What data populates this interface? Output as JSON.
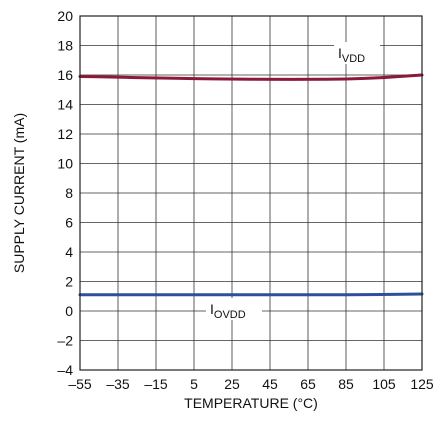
{
  "chart_data": {
    "type": "line",
    "title": "",
    "xlabel": "TEMPERATURE (°C)",
    "ylabel": "SUPPLY CURRENT (mA)",
    "xlim": [
      -55,
      125
    ],
    "ylim": [
      -4,
      20
    ],
    "x_ticks": [
      -55,
      -35,
      -15,
      5,
      25,
      45,
      65,
      85,
      105,
      125
    ],
    "x_tick_labels": [
      "–55",
      "–35",
      "–15",
      "5",
      "25",
      "45",
      "65",
      "85",
      "105",
      "125"
    ],
    "y_ticks": [
      -4,
      -2,
      0,
      2,
      4,
      6,
      8,
      10,
      12,
      14,
      16,
      18,
      20
    ],
    "y_tick_labels": [
      "–4",
      "–2",
      "0",
      "2",
      "4",
      "6",
      "8",
      "10",
      "12",
      "14",
      "16",
      "18",
      "20"
    ],
    "grid": true,
    "series": [
      {
        "name": "VDD",
        "label_main": "I",
        "label_sub": "VDD",
        "color": "#8b1a3a",
        "x": [
          -55,
          -35,
          -15,
          5,
          25,
          45,
          65,
          85,
          105,
          125
        ],
        "values": [
          15.9,
          15.85,
          15.8,
          15.75,
          15.72,
          15.7,
          15.7,
          15.72,
          15.82,
          16.0
        ]
      },
      {
        "name": "OVDD",
        "label_main": "I",
        "label_sub": "OVDD",
        "color": "#2e4f9e",
        "x": [
          -55,
          -35,
          -15,
          5,
          25,
          45,
          65,
          85,
          105,
          125
        ],
        "values": [
          1.1,
          1.1,
          1.1,
          1.1,
          1.1,
          1.1,
          1.1,
          1.1,
          1.12,
          1.15
        ]
      }
    ]
  }
}
